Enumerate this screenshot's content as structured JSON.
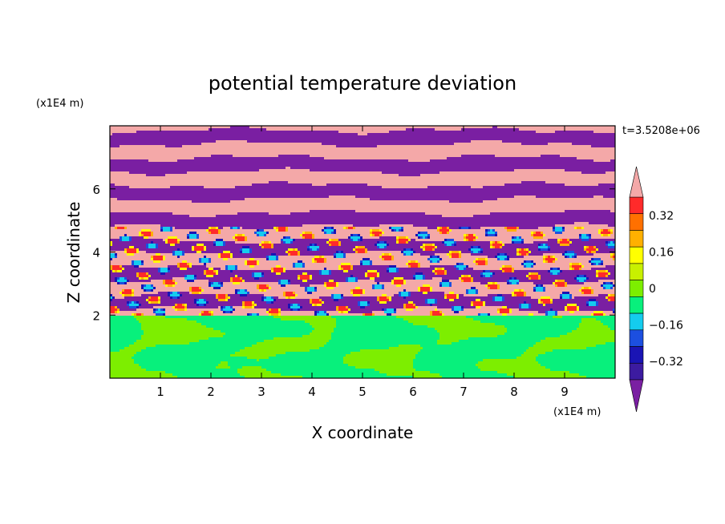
{
  "chart_data": {
    "type": "heatmap",
    "title": "potential temperature deviation",
    "xlabel": "X coordinate",
    "ylabel": "Z coordinate",
    "x_unit": "(x1E4 m)",
    "y_unit": "(x1E4 m)",
    "time_label": "t=3.5208e+06",
    "xlim": [
      0,
      10
    ],
    "ylim": [
      0,
      8
    ],
    "x_ticks": [
      "1",
      "2",
      "3",
      "4",
      "5",
      "6",
      "7",
      "8",
      "9"
    ],
    "y_ticks": [
      "2",
      "4",
      "6"
    ],
    "colorbar": {
      "levels": [
        -0.48,
        -0.4,
        -0.32,
        -0.24,
        -0.16,
        -0.08,
        0,
        0.08,
        0.16,
        0.24,
        0.32,
        0.4,
        0.48
      ],
      "labels": [
        "0.32",
        "0.16",
        "0",
        "−0.16",
        "−0.32"
      ],
      "label_values": [
        0.32,
        0.16,
        0,
        -0.16,
        -0.32
      ],
      "colors": [
        "#7a1fa2",
        "#3c1ba0",
        "#1a14b4",
        "#1c4fe0",
        "#14ccee",
        "#08f07c",
        "#7dee00",
        "#c8f000",
        "#ffff00",
        "#ffb000",
        "#ff7000",
        "#ff2a2a",
        "#f4a8a8"
      ],
      "extend": "both"
    },
    "description_bands": {
      "lower_layer_top": 2.0,
      "mixed_layer_top": 4.8,
      "domain_top": 8.0
    }
  }
}
